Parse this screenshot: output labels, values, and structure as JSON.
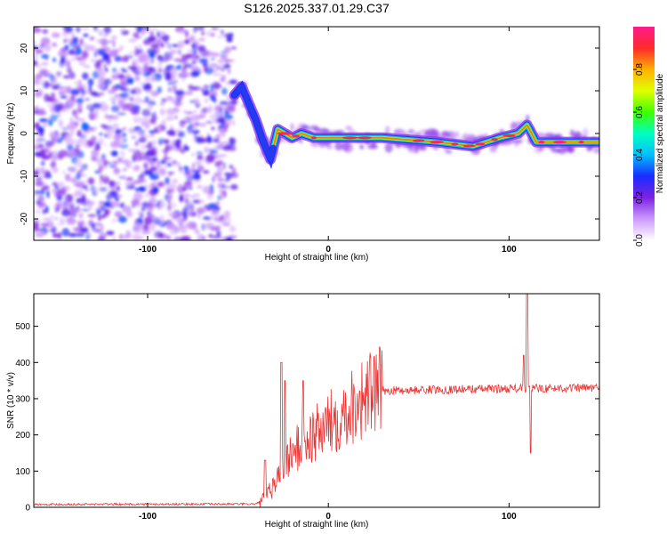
{
  "title": "S126.2025.337.01.29.C37",
  "chart_data": [
    {
      "type": "heatmap",
      "name": "spectrogram",
      "xlabel": "Height of straight line (km)",
      "ylabel": "Frequency (Hz)",
      "xlim": [
        -163,
        150
      ],
      "ylim": [
        -25,
        25
      ],
      "xticks": [
        -100,
        0,
        100
      ],
      "yticks": [
        20,
        10,
        0,
        -10,
        -20
      ],
      "colorbar": {
        "label": "Normalized spectral amplitude",
        "range": [
          0,
          1
        ],
        "ticks": [
          0.0,
          0.2,
          0.4,
          0.6,
          0.8
        ],
        "colors": [
          "#ffffff",
          "#cc99ff",
          "#7b22e0",
          "#1a2cff",
          "#00bfff",
          "#00ffc0",
          "#40ff00",
          "#e0ff00",
          "#ffb000",
          "#ff2a2a",
          "#ff1a8c"
        ]
      },
      "noise_region_km": [
        -163,
        -52
      ],
      "signal_track": [
        {
          "x": -52,
          "y": 9
        },
        {
          "x": -48,
          "y": 11
        },
        {
          "x": -44,
          "y": 7
        },
        {
          "x": -40,
          "y": 3
        },
        {
          "x": -36,
          "y": -2
        },
        {
          "x": -32,
          "y": -6
        },
        {
          "x": -28,
          "y": 1
        },
        {
          "x": -24,
          "y": 0
        },
        {
          "x": -20,
          "y": -1
        },
        {
          "x": -15,
          "y": 0
        },
        {
          "x": -8,
          "y": -1
        },
        {
          "x": 0,
          "y": -1
        },
        {
          "x": 10,
          "y": -1
        },
        {
          "x": 30,
          "y": -1
        },
        {
          "x": 60,
          "y": -2
        },
        {
          "x": 80,
          "y": -3
        },
        {
          "x": 95,
          "y": -1
        },
        {
          "x": 105,
          "y": 0
        },
        {
          "x": 110,
          "y": 2
        },
        {
          "x": 115,
          "y": -2
        },
        {
          "x": 150,
          "y": -2
        }
      ]
    },
    {
      "type": "line",
      "name": "snr",
      "xlabel": "Height of straight line (km)",
      "ylabel": "SNR (10 * v/v)",
      "xlim": [
        -163,
        150
      ],
      "ylim": [
        0,
        590
      ],
      "xticks": [
        -100,
        0,
        100
      ],
      "yticks": [
        0,
        100,
        200,
        300,
        400,
        500
      ],
      "color": "#ee3333",
      "baseline": [
        {
          "x": -163,
          "y": 8
        },
        {
          "x": -40,
          "y": 9
        },
        {
          "x": -35,
          "y": 25
        },
        {
          "x": -30,
          "y": 60
        },
        {
          "x": -25,
          "y": 120
        },
        {
          "x": -20,
          "y": 150
        },
        {
          "x": -15,
          "y": 170
        },
        {
          "x": -10,
          "y": 190
        },
        {
          "x": -5,
          "y": 210
        },
        {
          "x": 0,
          "y": 230
        },
        {
          "x": 5,
          "y": 250
        },
        {
          "x": 10,
          "y": 270
        },
        {
          "x": 15,
          "y": 290
        },
        {
          "x": 20,
          "y": 305
        },
        {
          "x": 25,
          "y": 318
        },
        {
          "x": 30,
          "y": 322
        },
        {
          "x": 60,
          "y": 325
        },
        {
          "x": 100,
          "y": 328
        },
        {
          "x": 150,
          "y": 330
        }
      ],
      "spikes": [
        {
          "x": -35,
          "y": 130
        },
        {
          "x": -26,
          "y": 400
        },
        {
          "x": -24,
          "y": 350
        },
        {
          "x": -14,
          "y": 350
        },
        {
          "x": 110,
          "y": 590
        },
        {
          "x": 112,
          "y": 150
        },
        {
          "x": 108,
          "y": 420
        }
      ]
    }
  ]
}
